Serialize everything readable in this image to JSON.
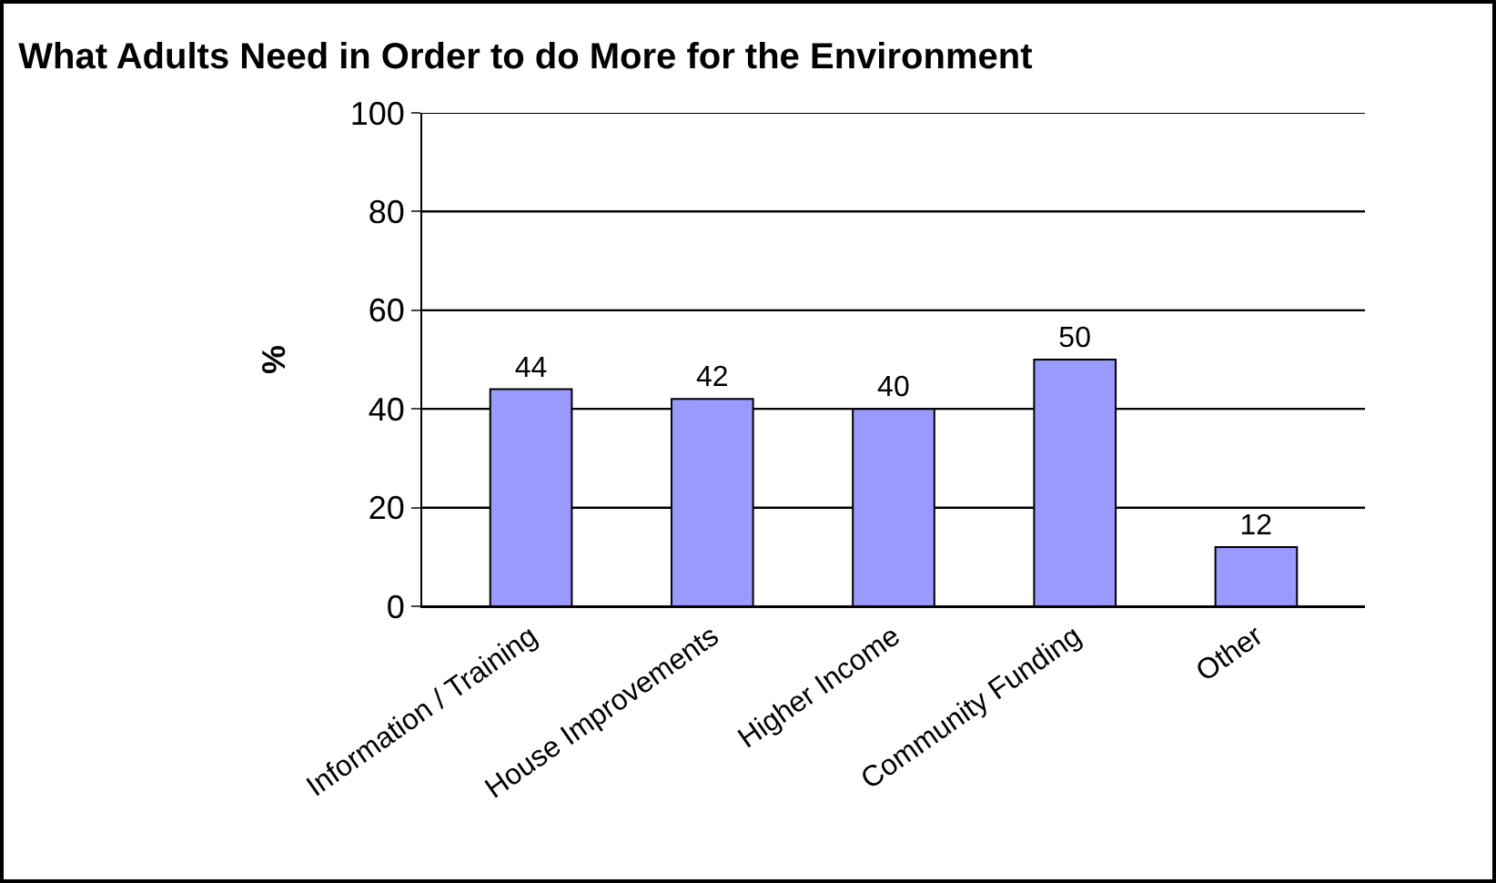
{
  "chart_data": {
    "type": "bar",
    "title": "What Adults Need in Order to do More for the Environment",
    "ylabel": "%",
    "categories": [
      "Information / Training",
      "House Improvements",
      "Higher Income",
      "Community Funding",
      "Other"
    ],
    "values": [
      44,
      42,
      40,
      50,
      12
    ],
    "color": "#9999ff",
    "ylim": [
      0,
      100
    ],
    "yticks": [
      0,
      20,
      40,
      60,
      80,
      100
    ],
    "grid": "y",
    "data_labels": true
  }
}
